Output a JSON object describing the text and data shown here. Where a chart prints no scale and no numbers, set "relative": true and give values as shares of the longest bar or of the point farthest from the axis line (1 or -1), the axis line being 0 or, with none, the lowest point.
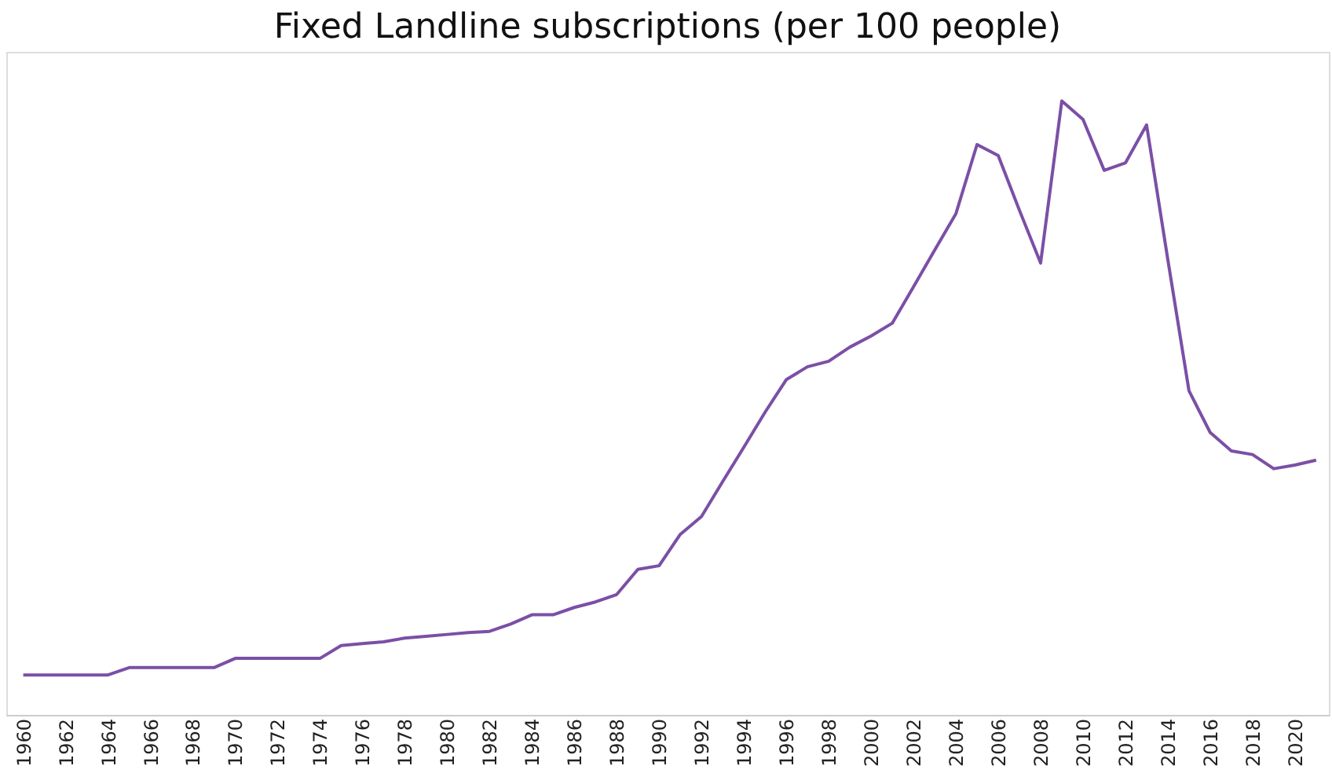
{
  "chart_data": {
    "type": "line",
    "title": "Fixed Landline subscriptions (per 100 people)",
    "relative": true,
    "x": [
      1960,
      1961,
      1962,
      1963,
      1964,
      1965,
      1966,
      1967,
      1968,
      1969,
      1970,
      1971,
      1972,
      1973,
      1974,
      1975,
      1976,
      1977,
      1978,
      1979,
      1980,
      1981,
      1982,
      1983,
      1984,
      1985,
      1986,
      1987,
      1988,
      1989,
      1990,
      1991,
      1992,
      1993,
      1994,
      1995,
      1996,
      1997,
      1998,
      1999,
      2000,
      2001,
      2002,
      2003,
      2004,
      2005,
      2006,
      2007,
      2008,
      2009,
      2010,
      2011,
      2012,
      2013,
      2014,
      2015,
      2016,
      2017,
      2018,
      2019,
      2020,
      2021
    ],
    "series": [
      {
        "color": "#7b4fa6",
        "values": [
          0.065,
          0.065,
          0.065,
          0.065,
          0.065,
          0.077,
          0.077,
          0.077,
          0.077,
          0.077,
          0.092,
          0.092,
          0.092,
          0.092,
          0.092,
          0.113,
          0.116,
          0.119,
          0.125,
          0.128,
          0.131,
          0.134,
          0.136,
          0.148,
          0.163,
          0.163,
          0.175,
          0.184,
          0.196,
          0.237,
          0.243,
          0.294,
          0.323,
          0.38,
          0.436,
          0.493,
          0.546,
          0.567,
          0.576,
          0.599,
          0.617,
          0.638,
          0.697,
          0.757,
          0.816,
          0.929,
          0.911,
          0.822,
          0.736,
          1,
          0.97,
          0.887,
          0.899,
          0.961,
          0.742,
          0.528,
          0.46,
          0.43,
          0.424,
          0.401,
          0.407,
          0.415
        ]
      }
    ],
    "xlim": [
      1959.2,
      2021.6
    ],
    "xticks": [
      1960,
      1962,
      1964,
      1966,
      1968,
      1970,
      1972,
      1974,
      1976,
      1978,
      1980,
      1982,
      1984,
      1986,
      1988,
      1990,
      1992,
      1994,
      1996,
      1998,
      2000,
      2002,
      2004,
      2006,
      2008,
      2010,
      2012,
      2014,
      2016,
      2018,
      2020
    ],
    "marker": "none",
    "line_style": "solid"
  }
}
